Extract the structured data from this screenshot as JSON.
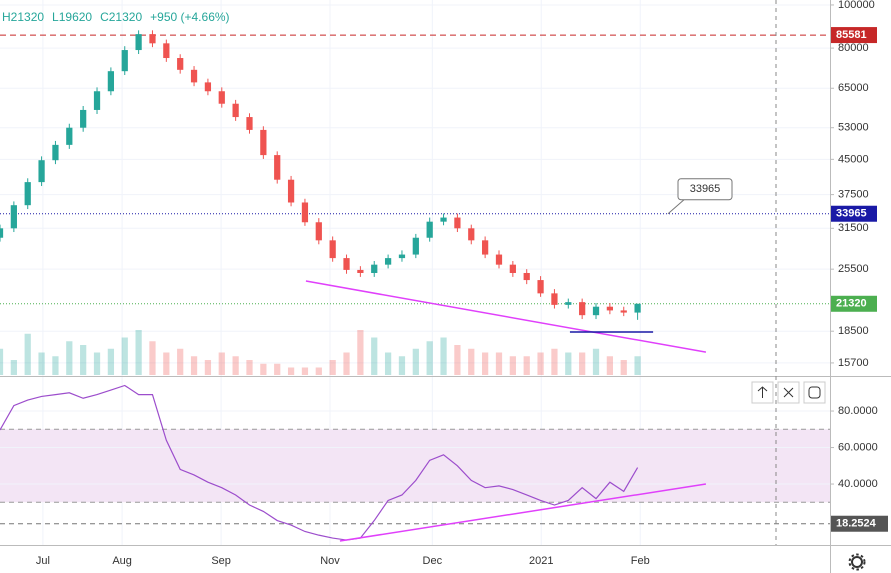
{
  "chart_data": {
    "type": "candlestick",
    "header": [
      "H21320",
      "L19620",
      "C21320",
      "+950 (+4.66%)"
    ],
    "log_scale": true,
    "grid": true,
    "up_color": "#26a69a",
    "down_color": "#ef5350",
    "xlim": [
      0,
      251.5
    ],
    "xticks": [
      {
        "value": 13,
        "label": "Jul"
      },
      {
        "value": 37,
        "label": "Aug"
      },
      {
        "value": 67,
        "label": "Sep"
      },
      {
        "value": 100,
        "label": "Nov"
      },
      {
        "value": 131,
        "label": "Dec"
      },
      {
        "value": 164,
        "label": "2021"
      },
      {
        "value": 194,
        "label": "Feb"
      }
    ],
    "ylim": [
      14750,
      102600
    ],
    "yticks": [
      100000,
      80000,
      65000,
      53000,
      45000,
      37500,
      31500,
      25500,
      18500,
      15700
    ],
    "x": [
      0,
      4.2,
      8.4,
      12.6,
      16.8,
      21,
      25.2,
      29.4,
      33.6,
      37.8,
      42,
      46.2,
      50.4,
      54.6,
      58.8,
      63,
      67.2,
      71.4,
      75.6,
      79.8,
      84,
      88.2,
      92.4,
      96.6,
      100.8,
      105,
      109.2,
      113.4,
      117.6,
      121.8,
      126,
      130.2,
      134.4,
      138.6,
      142.8,
      147,
      151.2,
      155.4,
      159.6,
      163.8,
      168,
      172.2,
      176.4,
      180.6,
      184.8,
      189,
      193.2
    ],
    "open": [
      30000,
      31500,
      35500,
      40000,
      44800,
      48500,
      53000,
      58100,
      64000,
      71000,
      79200,
      86000,
      82000,
      76000,
      71500,
      67000,
      64000,
      60000,
      56000,
      52400,
      46000,
      40500,
      36000,
      32500,
      29600,
      27000,
      25400,
      25000,
      26100,
      27000,
      27500,
      30000,
      32600,
      33300,
      31500,
      29600,
      27500,
      26100,
      25000,
      24100,
      22500,
      21200,
      21500,
      20100,
      21000,
      20600,
      20370
    ],
    "high": [
      32100,
      36200,
      40800,
      45700,
      49500,
      54100,
      59300,
      65300,
      72400,
      80800,
      87700,
      87700,
      83600,
      77500,
      72900,
      68300,
      65300,
      61200,
      57100,
      53400,
      46900,
      41300,
      36700,
      33200,
      30200,
      27500,
      25900,
      26600,
      27500,
      28100,
      30600,
      33300,
      34000,
      34000,
      32100,
      30200,
      28100,
      26600,
      25500,
      24600,
      23000,
      21900,
      21900,
      21400,
      21400,
      21000,
      21320
    ],
    "low": [
      29400,
      30900,
      34800,
      39200,
      43900,
      47500,
      51900,
      56900,
      62700,
      69600,
      77600,
      80400,
      74500,
      70100,
      65700,
      62700,
      58800,
      54900,
      51400,
      45100,
      39700,
      35300,
      31900,
      29000,
      26500,
      24900,
      24500,
      24500,
      25600,
      26500,
      27000,
      29400,
      32000,
      30900,
      29000,
      27000,
      25600,
      24500,
      23600,
      22100,
      20800,
      20800,
      19700,
      19700,
      20200,
      20000,
      19620
    ],
    "close": [
      31500,
      35500,
      40000,
      44800,
      48500,
      53000,
      58100,
      64000,
      71000,
      79200,
      86000,
      82000,
      76000,
      71500,
      67000,
      64000,
      60000,
      56000,
      52400,
      46000,
      40500,
      36000,
      32500,
      29600,
      27000,
      25400,
      25000,
      26100,
      27000,
      27500,
      30000,
      32600,
      33300,
      31500,
      29600,
      27500,
      26100,
      25000,
      24100,
      22500,
      21200,
      21500,
      20100,
      21000,
      20600,
      20370,
      21320
    ],
    "volume": [
      35,
      20,
      55,
      30,
      25,
      45,
      40,
      30,
      35,
      50,
      60,
      45,
      30,
      35,
      25,
      20,
      30,
      25,
      20,
      15,
      15,
      10,
      10,
      10,
      20,
      30,
      60,
      50,
      30,
      25,
      35,
      45,
      50,
      40,
      35,
      30,
      30,
      25,
      25,
      30,
      35,
      30,
      30,
      35,
      25,
      20,
      25
    ],
    "vlim": [
      0,
      100
    ],
    "price_lines": [
      {
        "value": 85581,
        "color": "#c62828",
        "style": "dashed"
      },
      {
        "value": 33965,
        "color": "#1a1aa6",
        "style": "dotted"
      },
      {
        "value": 21320,
        "color": "#4caf50",
        "style": "dotted"
      }
    ],
    "trendlines": [
      {
        "x": [
          92.7,
          213.9
        ],
        "y": [
          23980,
          16600
        ],
        "color": "#e040fb"
      },
      {
        "x": [
          172.7,
          197.9
        ],
        "y": [
          18420,
          18420
        ],
        "color": "#1a1aa6"
      }
    ],
    "rsi": {
      "values": [
        69.6,
        83,
        86,
        88,
        89,
        90,
        87,
        89,
        91.5,
        94,
        89,
        89,
        64,
        48,
        45,
        41,
        38,
        34,
        28.5,
        25,
        20,
        17.5,
        14,
        12,
        10.4,
        9.3,
        10.4,
        20,
        31,
        34,
        42,
        53,
        56,
        50,
        42,
        38,
        39,
        37,
        34,
        31,
        28.5,
        31,
        38,
        32,
        41,
        36,
        49
      ],
      "color": "#9c4dcc",
      "ylim": [
        6.6,
        98.1
      ],
      "yticks": [
        {
          "value": 80,
          "label": "80.0000"
        },
        {
          "value": 60,
          "label": "60.0000"
        },
        {
          "value": 40,
          "label": "40.0000"
        }
      ],
      "band": [
        30,
        70
      ],
      "marker": 18.2524,
      "trendline": {
        "x": [
          103,
          213.9
        ],
        "y": [
          8.8,
          40
        ],
        "color": "#e040fb"
      }
    }
  }
}
